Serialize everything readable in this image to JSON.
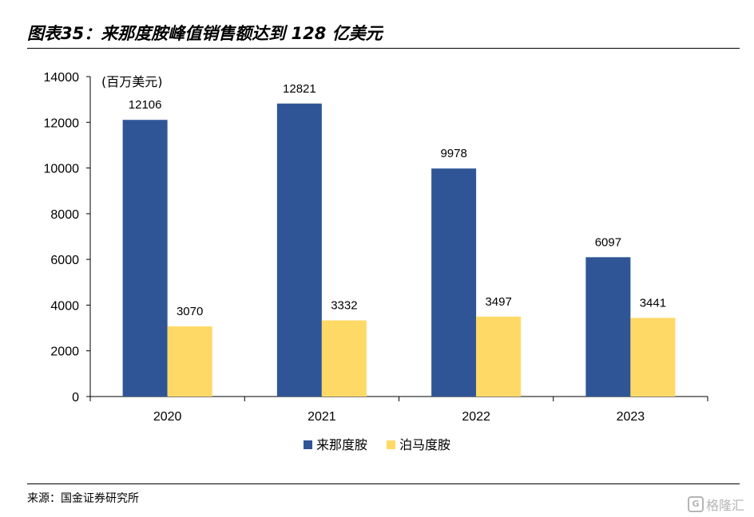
{
  "header": {
    "title": "图表35：来那度胺峰值销售额达到 128 亿美元"
  },
  "footer": {
    "source": "来源：国金证券研究所",
    "watermark": "格隆汇"
  },
  "chart_data": {
    "type": "bar",
    "unit_label": "(百万美元)",
    "categories": [
      "2020",
      "2021",
      "2022",
      "2023"
    ],
    "series": [
      {
        "name": "来那度胺",
        "color": "#2f5597",
        "values": [
          12106,
          12821,
          9978,
          6097
        ]
      },
      {
        "name": "泊马度胺",
        "color": "#ffd966",
        "values": [
          3070,
          3332,
          3497,
          3441
        ]
      }
    ],
    "ylim": [
      0,
      14000
    ],
    "yticks": [
      0,
      2000,
      4000,
      6000,
      8000,
      10000,
      12000,
      14000
    ],
    "grid": false,
    "legend_position": "bottom"
  }
}
